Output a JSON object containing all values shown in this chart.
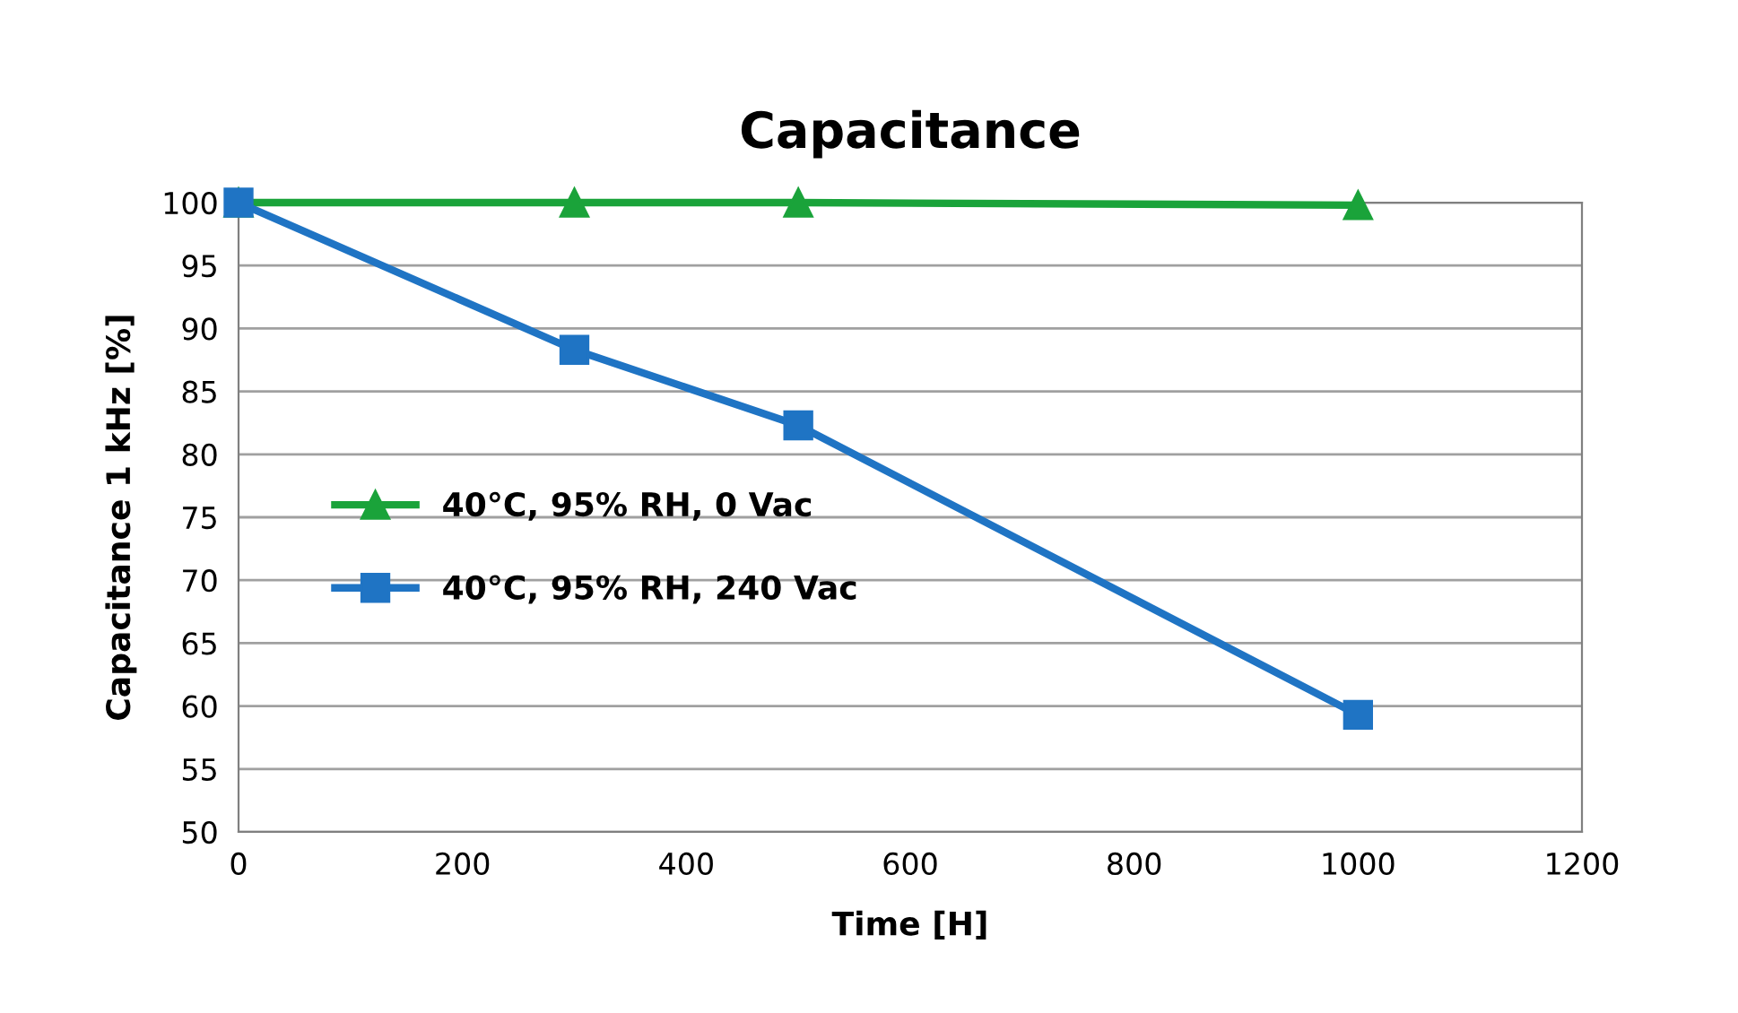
{
  "chart_data": {
    "type": "line",
    "title": "Capacitance",
    "xlabel": "Time [H]",
    "ylabel": "Capacitance 1 kHz [%]",
    "xlim": [
      0,
      1200
    ],
    "xticks": [
      0,
      200,
      400,
      600,
      800,
      1000,
      1200
    ],
    "ylim": [
      50,
      100
    ],
    "yticks": [
      50,
      55,
      60,
      65,
      70,
      75,
      80,
      85,
      90,
      95,
      100
    ],
    "grid": "y",
    "legend": "left",
    "line_style": "solid",
    "series": [
      {
        "name": "40°C, 95% RH, 0 Vac",
        "color": "#1aa33a",
        "marker": "triangle",
        "x": [
          0,
          300,
          500,
          1000
        ],
        "values": [
          100,
          100,
          100,
          99.8
        ]
      },
      {
        "name": "40°C, 95% RH, 240 Vac",
        "color": "#1f74c4",
        "marker": "square",
        "x": [
          0,
          300,
          500,
          1000
        ],
        "values": [
          100,
          88.3,
          82.3,
          59.3
        ]
      }
    ]
  }
}
